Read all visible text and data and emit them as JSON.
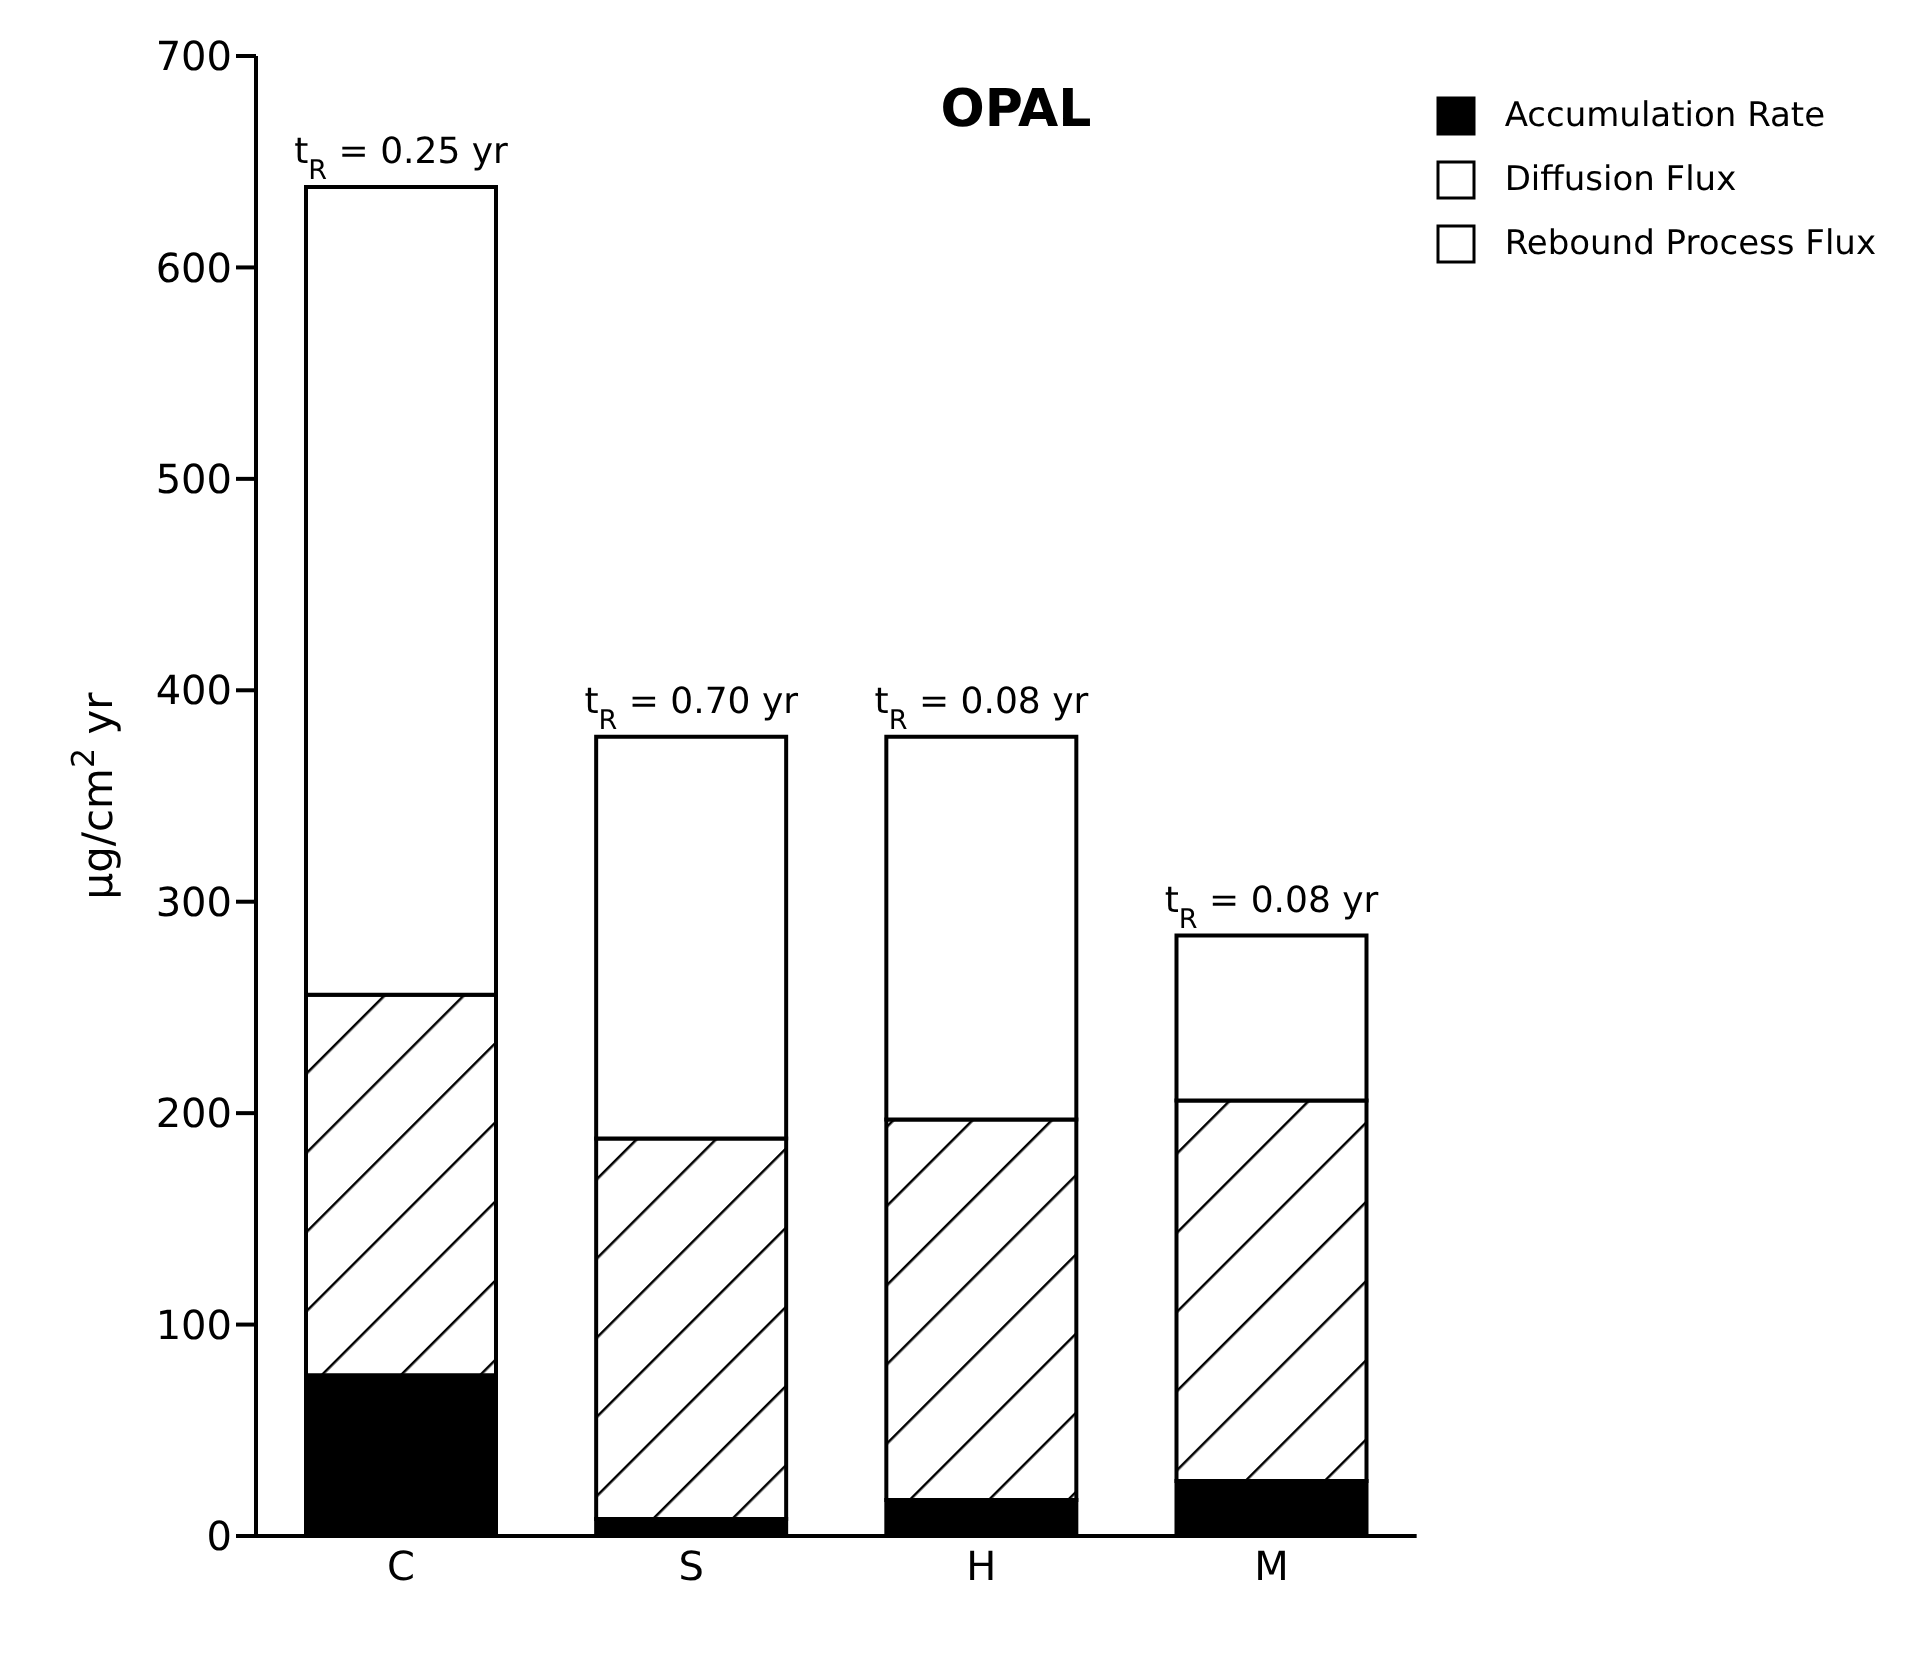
{
  "chart_data": {
    "type": "bar",
    "title": "OPAL",
    "ylabel": "µg/cm$^{2}$ yr",
    "categories": [
      "C",
      "S",
      "H",
      "M"
    ],
    "stacked": true,
    "series": [
      {
        "name": "Accumulation Rate",
        "color": "#000000",
        "values": [
          76,
          8,
          17,
          26
        ]
      },
      {
        "name": "Diffusion Flux",
        "color": "#000000",
        "values": [
          180,
          180,
          180,
          180
        ]
      },
      {
        "name": "Rebound Process Flux",
        "color": "#ffffff",
        "values": [
          382,
          190,
          181,
          78
        ]
      }
    ],
    "ylim": [
      0,
      700
    ],
    "yticks": [
      0,
      100,
      200,
      300,
      400,
      500,
      600,
      700
    ],
    "grid": false,
    "legend": "top right",
    "annotations": [
      {
        "text": "t$_{R}$ = 0.25 yr",
        "x": "C",
        "y": 638
      },
      {
        "text": "t$_{R}$ = 0.70 yr",
        "x": "S",
        "y": 378
      },
      {
        "text": "t$_{R}$ = 0.08 yr",
        "x": "H",
        "y": 378
      },
      {
        "text": "t$_{R}$ = 0.08 yr",
        "x": "M",
        "y": 284
      }
    ]
  }
}
